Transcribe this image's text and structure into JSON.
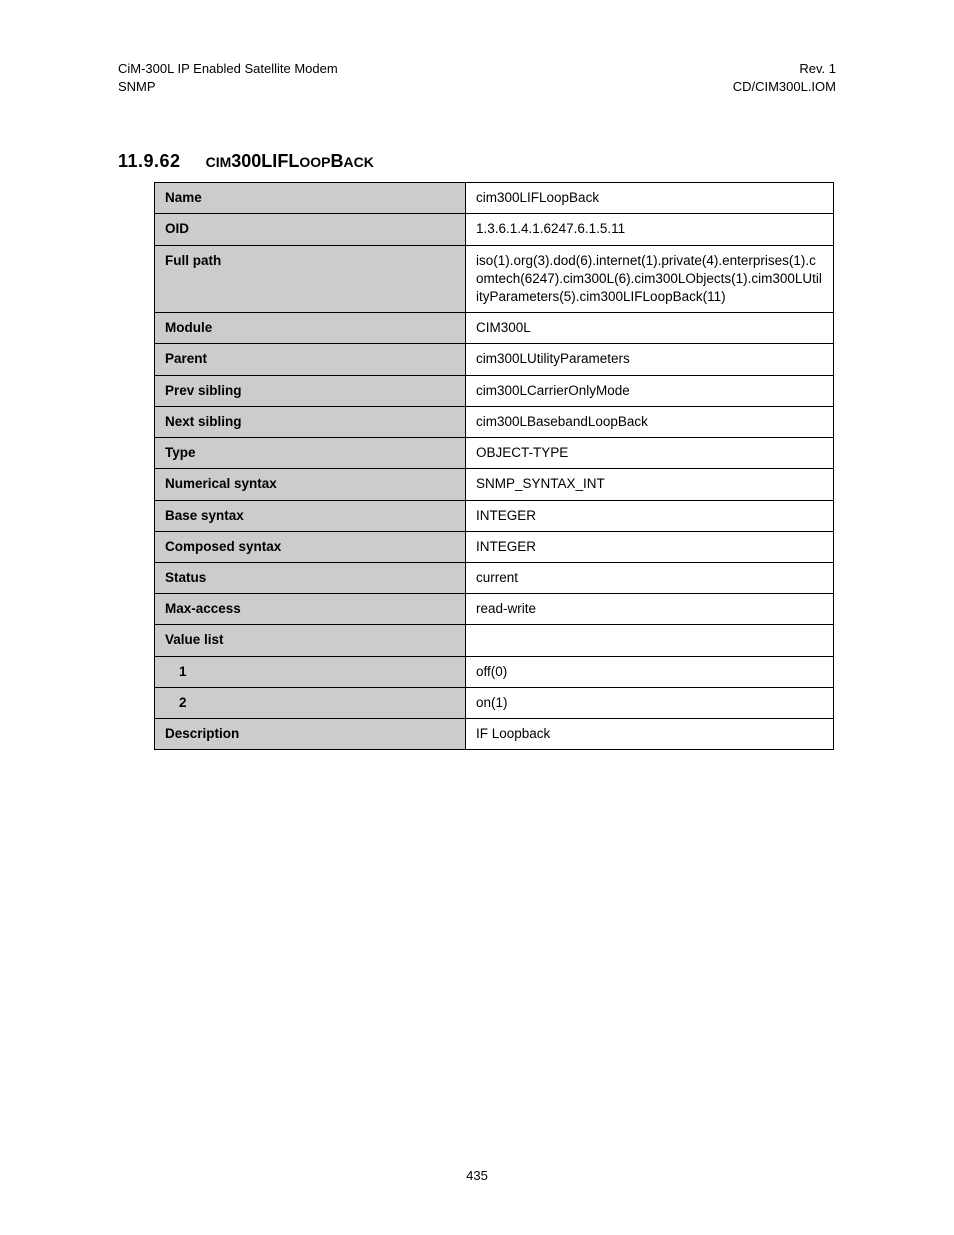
{
  "header": {
    "left_line1": "CiM-300L IP Enabled Satellite Modem",
    "left_line2": "SNMP",
    "right_line1": "Rev. 1",
    "right_line2": "CD/CIM300L.IOM"
  },
  "section": {
    "number": "11.9.62",
    "title_prefix_caps": "CIM",
    "title_rest": "300LIFLoopBack"
  },
  "table": {
    "rows": [
      {
        "label": "Name",
        "value": "cim300LIFLoopBack"
      },
      {
        "label": "OID",
        "value": "1.3.6.1.4.1.6247.6.1.5.11"
      },
      {
        "label": "Full path",
        "value": "iso(1).org(3).dod(6).internet(1).private(4).enterprises(1).comtech(6247).cim300L(6).cim300LObjects(1).cim300LUtilityParameters(5).cim300LIFLoopBack(11)"
      },
      {
        "label": "Module",
        "value": "CIM300L"
      },
      {
        "label": "Parent",
        "value": "cim300LUtilityParameters"
      },
      {
        "label": "Prev sibling",
        "value": "cim300LCarrierOnlyMode"
      },
      {
        "label": "Next sibling",
        "value": "cim300LBasebandLoopBack"
      },
      {
        "label": "Type",
        "value": "OBJECT-TYPE"
      },
      {
        "label": "Numerical syntax",
        "value": "SNMP_SYNTAX_INT"
      },
      {
        "label": "Base syntax",
        "value": "INTEGER"
      },
      {
        "label": "Composed syntax",
        "value": "INTEGER"
      },
      {
        "label": "Status",
        "value": "current"
      },
      {
        "label": "Max-access",
        "value": "read-write"
      },
      {
        "label": "Value list",
        "value": ""
      },
      {
        "label": "1",
        "value": "off(0)",
        "indent": true
      },
      {
        "label": "2",
        "value": "on(1)",
        "indent": true
      },
      {
        "label": "Description",
        "value": "IF Loopback"
      }
    ]
  },
  "page_number": "435"
}
